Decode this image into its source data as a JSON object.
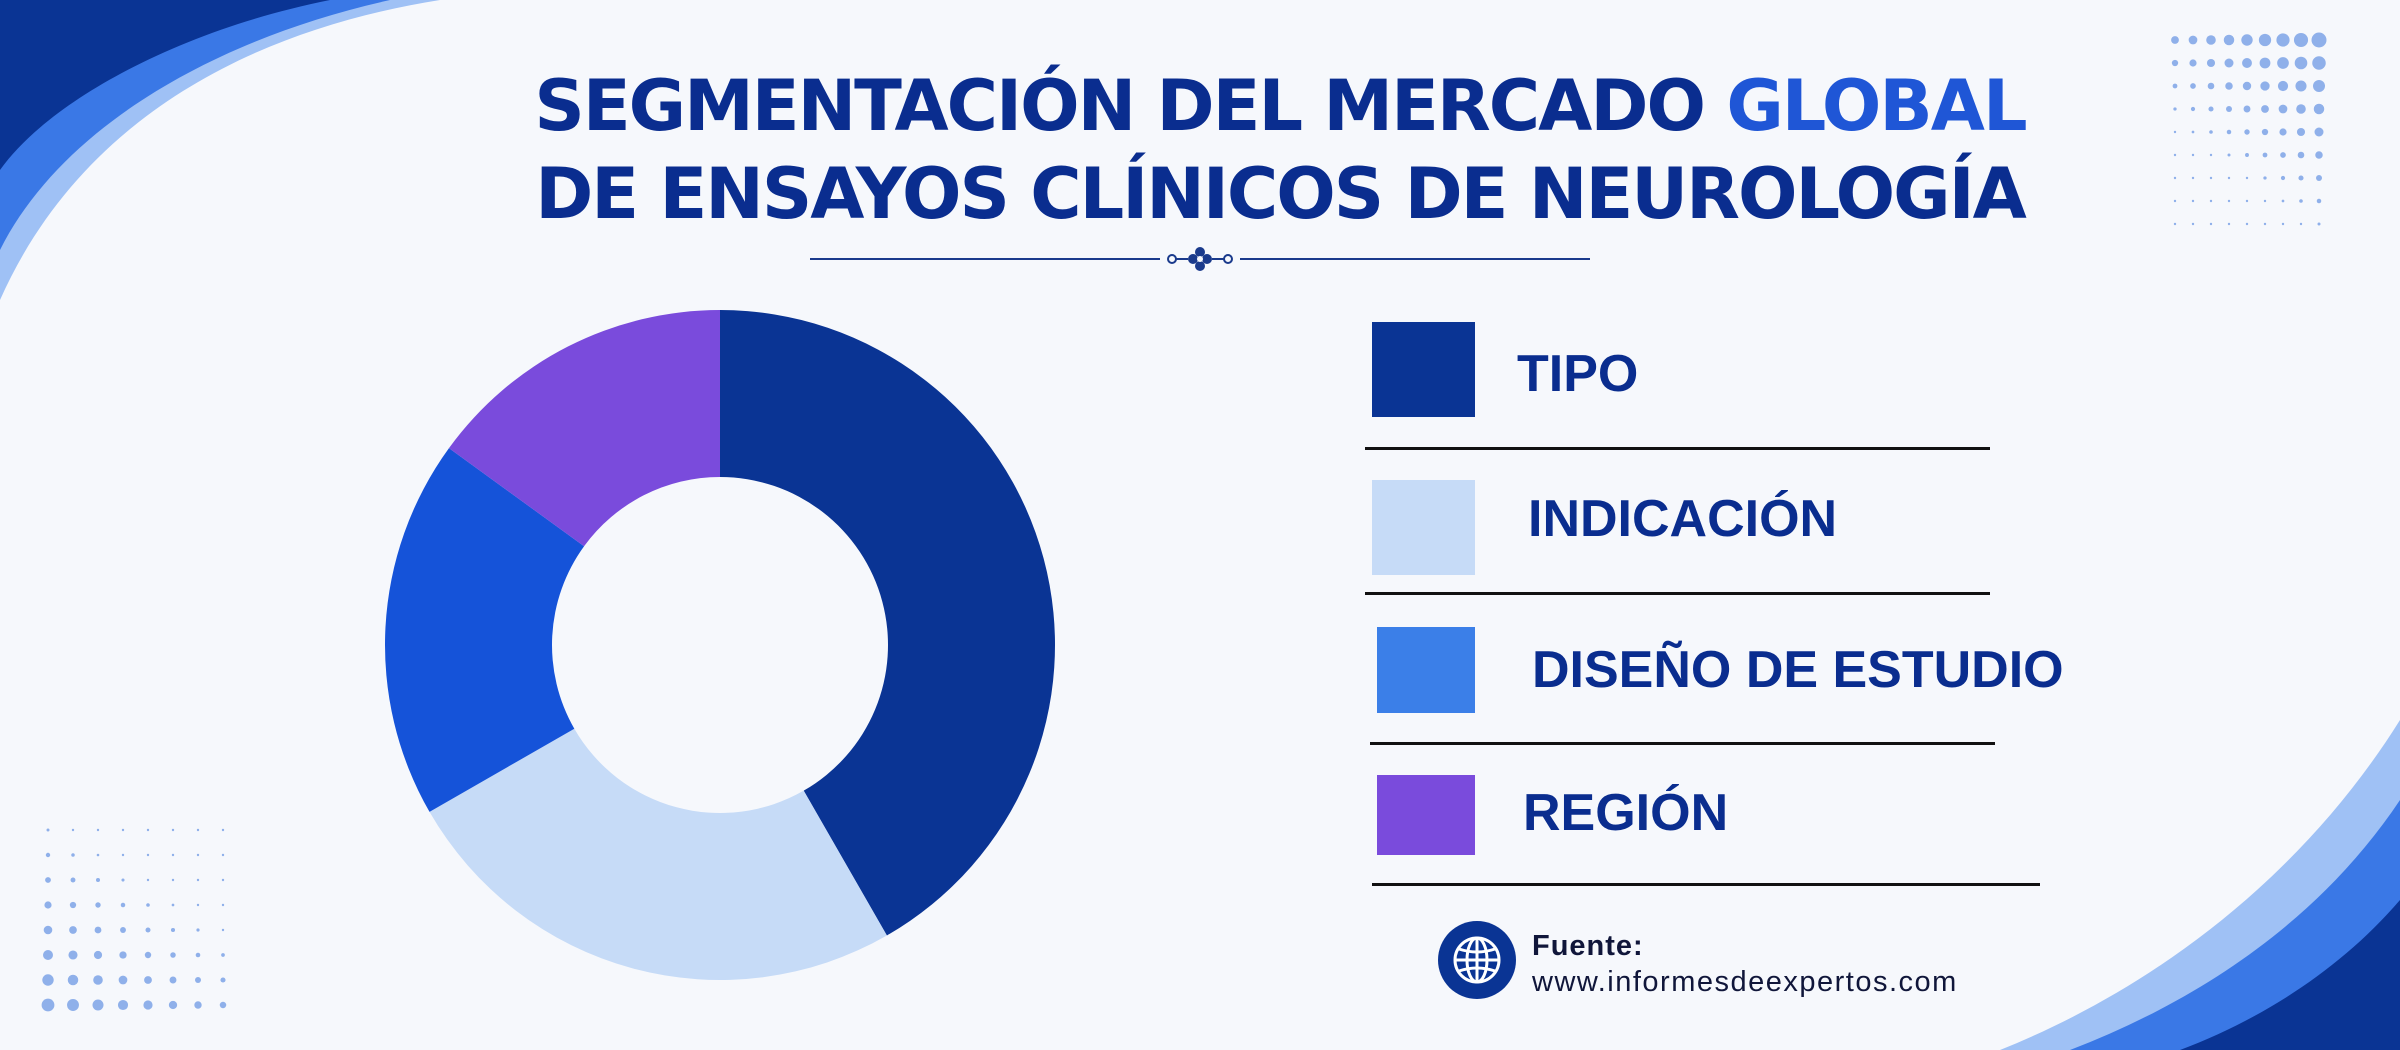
{
  "header": {
    "title_line1_a": "SEGMENTACIÓN DEL MERCADO ",
    "title_line1_accent": "GLOBAL",
    "title_line2": "DE ENSAYOS CLÍNICOS DE NEUROLOGÍA"
  },
  "colors": {
    "title": "#0a2d8f",
    "accent": "#1f56d6",
    "background": "#f6f8fc"
  },
  "chart_data": {
    "type": "pie",
    "donut": true,
    "categories": [
      "TIPO",
      "INDICACIÓN",
      "DISEÑO DE ESTUDIO",
      "REGIÓN"
    ],
    "values": [
      41.7,
      25.0,
      18.3,
      15.0
    ],
    "colors": [
      "#0a3494",
      "#c6dbf7",
      "#1553d9",
      "#7a4bdc"
    ],
    "start_angle_deg": 0,
    "legend_position": "right"
  },
  "legend": {
    "items": [
      {
        "label": "TIPO",
        "color": "#0a3494"
      },
      {
        "label": "INDICACIÓN",
        "color": "#c6dbf7"
      },
      {
        "label": "DISEÑO DE ESTUDIO",
        "color": "#3b7fe8"
      },
      {
        "label": "REGIÓN",
        "color": "#7a4bdc"
      }
    ]
  },
  "source": {
    "label": "Fuente:",
    "url": "www.informesdeexpertos.com",
    "icon": "globe-icon"
  }
}
